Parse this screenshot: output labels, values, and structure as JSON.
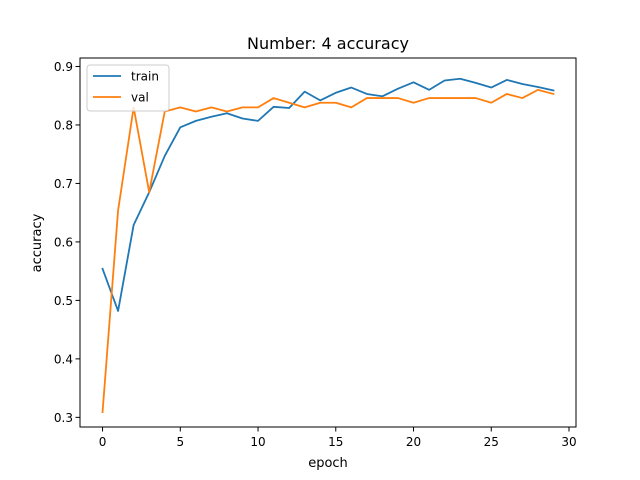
{
  "chart_data": {
    "type": "line",
    "title": "Number: 4 accuracy",
    "xlabel": "epoch",
    "ylabel": "accuracy",
    "xlim": [
      -1.45,
      30.45
    ],
    "ylim": [
      0.2835,
      0.9145
    ],
    "xticks": [
      0,
      5,
      10,
      15,
      20,
      25,
      30
    ],
    "yticks": [
      0.3,
      0.4,
      0.5,
      0.6,
      0.7,
      0.8,
      0.9
    ],
    "legend_position": "top-left",
    "x": [
      0,
      1,
      2,
      3,
      4,
      5,
      6,
      7,
      8,
      9,
      10,
      11,
      12,
      13,
      14,
      15,
      16,
      17,
      18,
      19,
      20,
      21,
      22,
      23,
      24,
      25,
      26,
      27,
      28,
      29
    ],
    "series": [
      {
        "name": "train",
        "color": "#1f77b4",
        "values": [
          0.554,
          0.482,
          0.629,
          0.685,
          0.747,
          0.796,
          0.807,
          0.814,
          0.82,
          0.811,
          0.807,
          0.831,
          0.829,
          0.857,
          0.842,
          0.855,
          0.864,
          0.853,
          0.849,
          0.862,
          0.873,
          0.86,
          0.876,
          0.879,
          0.872,
          0.864,
          0.877,
          0.87,
          0.865,
          0.859
        ]
      },
      {
        "name": "val",
        "color": "#ff7f0e",
        "values": [
          0.309,
          0.654,
          0.83,
          0.685,
          0.823,
          0.83,
          0.823,
          0.83,
          0.823,
          0.83,
          0.83,
          0.846,
          0.838,
          0.83,
          0.838,
          0.838,
          0.83,
          0.846,
          0.846,
          0.846,
          0.838,
          0.846,
          0.846,
          0.846,
          0.846,
          0.838,
          0.853,
          0.846,
          0.86,
          0.853
        ]
      }
    ]
  }
}
